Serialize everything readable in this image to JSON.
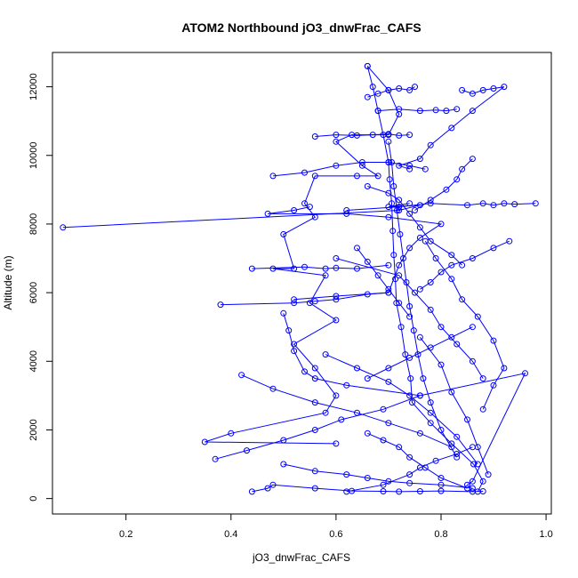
{
  "chart_data": {
    "type": "scatter",
    "title": "ATOM2 Northbound jO3_dnwFrac_CAFS",
    "xlabel": "jO3_dnwFrac_CAFS",
    "ylabel": "Altitude (m)",
    "xlim": [
      0.06,
      1.01
    ],
    "ylim": [
      -450,
      13000
    ],
    "xticks": [
      0.2,
      0.4,
      0.6,
      0.8,
      1.0
    ],
    "xtick_labels": [
      "0.2",
      "0.4",
      "0.6",
      "0.8",
      "1.0"
    ],
    "yticks": [
      0,
      2000,
      4000,
      6000,
      8000,
      10000,
      12000
    ],
    "ytick_labels": [
      "0",
      "2000",
      "4000",
      "6000",
      "8000",
      "10000",
      "12000"
    ],
    "grid": false,
    "marker": "open-circle",
    "connected": true,
    "color": "#0000ff",
    "series": [
      {
        "x": [
          0.87,
          0.88,
          0.862,
          0.82,
          0.78,
          0.745,
          0.742,
          0.732,
          0.724,
          0.715,
          0.713,
          0.71,
          0.708,
          0.706,
          0.702,
          0.7,
          0.69,
          0.68,
          0.67,
          0.66
        ],
        "y": [
          200,
          500,
          1000,
          1600,
          2200,
          2800,
          3500,
          4200,
          5000,
          5700,
          6400,
          7100,
          7800,
          8600,
          9300,
          9800,
          10600,
          11300,
          12000,
          12600
        ]
      },
      {
        "x": [
          0.66,
          0.7,
          0.72,
          0.7,
          0.63,
          0.6,
          0.65,
          0.68,
          0.64,
          0.56,
          0.54,
          0.56,
          0.5,
          0.52,
          0.48,
          0.58,
          0.55,
          0.6,
          0.52,
          0.56,
          0.6,
          0.58,
          0.4,
          0.35,
          0.6
        ],
        "y": [
          12600,
          11900,
          11200,
          10600,
          10600,
          10400,
          9700,
          9400,
          9400,
          9400,
          8600,
          8200,
          7700,
          6700,
          6700,
          6500,
          5700,
          5200,
          4500,
          3800,
          3000,
          2500,
          1900,
          1650,
          1600
        ]
      },
      {
        "x": [
          0.84,
          0.86,
          0.88,
          0.9,
          0.92,
          0.86,
          0.82,
          0.78,
          0.76,
          0.72,
          0.74
        ],
        "y": [
          11900,
          11800,
          11900,
          11950,
          12000,
          11300,
          10800,
          10300,
          9900,
          9700,
          9600
        ]
      },
      {
        "x": [
          0.44,
          0.47,
          0.48,
          0.56,
          0.63,
          0.69,
          0.72,
          0.76,
          0.8,
          0.86,
          0.88
        ],
        "y": [
          200,
          300,
          400,
          300,
          220,
          210,
          200,
          210,
          220,
          200,
          210
        ]
      },
      {
        "x": [
          0.85,
          0.86,
          0.96,
          0.76,
          0.62,
          0.56,
          0.54,
          0.52,
          0.51,
          0.5
        ],
        "y": [
          400,
          500,
          3650,
          3000,
          3300,
          3500,
          3700,
          4300,
          4900,
          5400
        ]
      },
      {
        "x": [
          0.52,
          0.6,
          0.7,
          0.72,
          0.74,
          0.76,
          0.8,
          0.7,
          0.62,
          0.47,
          0.52,
          0.55
        ],
        "y": [
          5800,
          5900,
          6000,
          6800,
          7300,
          7600,
          8000,
          8200,
          8300,
          8300,
          8400,
          8500
        ]
      },
      {
        "x": [
          0.62,
          0.72,
          0.78,
          0.85,
          0.88,
          0.9,
          0.92,
          0.94,
          0.98
        ],
        "y": [
          8400,
          8500,
          8600,
          8550,
          8600,
          8550,
          8600,
          8580,
          8600
        ]
      },
      {
        "x": [
          0.08,
          0.72,
          0.76,
          0.7,
          0.74
        ],
        "y": [
          7900,
          8400,
          8550,
          8500,
          8600
        ]
      },
      {
        "x": [
          0.38,
          0.52,
          0.56,
          0.6,
          0.66,
          0.7
        ],
        "y": [
          5650,
          5700,
          5750,
          5800,
          5950,
          6000
        ]
      },
      {
        "x": [
          0.44,
          0.54,
          0.58,
          0.6,
          0.64,
          0.7
        ],
        "y": [
          6700,
          6750,
          6700,
          6720,
          6700,
          6800
        ]
      },
      {
        "x": [
          0.6,
          0.72,
          0.75,
          0.78,
          0.8,
          0.83,
          0.86,
          0.88
        ],
        "y": [
          7000,
          6500,
          6000,
          5500,
          5000,
          4500,
          4000,
          3500
        ]
      },
      {
        "x": [
          0.37,
          0.43,
          0.5,
          0.56,
          0.61,
          0.69,
          0.76
        ],
        "y": [
          1150,
          1400,
          1700,
          2000,
          2300,
          2600,
          3000
        ]
      },
      {
        "x": [
          0.62,
          0.69,
          0.74,
          0.76,
          0.79,
          0.83,
          0.86
        ],
        "y": [
          200,
          400,
          700,
          900,
          1100,
          1300,
          1500
        ]
      },
      {
        "x": [
          0.88,
          0.9,
          0.92,
          0.9,
          0.87,
          0.84,
          0.82,
          0.79,
          0.77
        ],
        "y": [
          2600,
          3300,
          3800,
          4600,
          5300,
          5800,
          6400,
          7000,
          7500
        ]
      },
      {
        "x": [
          0.93,
          0.9,
          0.86,
          0.82,
          0.8,
          0.78,
          0.76
        ],
        "y": [
          7500,
          7300,
          7000,
          6800,
          6600,
          6300,
          6100
        ]
      },
      {
        "x": [
          0.86,
          0.84,
          0.83,
          0.81,
          0.78,
          0.75
        ],
        "y": [
          9900,
          9600,
          9300,
          9000,
          8700,
          8400
        ]
      },
      {
        "x": [
          0.48,
          0.54,
          0.6,
          0.65,
          0.7,
          0.74,
          0.77
        ],
        "y": [
          9400,
          9500,
          9700,
          9800,
          9800,
          9700,
          9600
        ]
      },
      {
        "x": [
          0.56,
          0.6,
          0.64,
          0.67,
          0.7,
          0.72,
          0.74
        ],
        "y": [
          10550,
          10600,
          10580,
          10600,
          10620,
          10580,
          10600
        ]
      },
      {
        "x": [
          0.68,
          0.72,
          0.76,
          0.79,
          0.81,
          0.83
        ],
        "y": [
          11300,
          11350,
          11300,
          11320,
          11300,
          11350
        ]
      },
      {
        "x": [
          0.66,
          0.68,
          0.7,
          0.72,
          0.74,
          0.75
        ],
        "y": [
          11700,
          11800,
          11900,
          11950,
          11900,
          12000
        ]
      },
      {
        "x": [
          0.5,
          0.56,
          0.62,
          0.66,
          0.7,
          0.74,
          0.8,
          0.86
        ],
        "y": [
          1000,
          800,
          700,
          600,
          500,
          450,
          400,
          300
        ]
      },
      {
        "x": [
          0.42,
          0.48,
          0.56,
          0.64,
          0.7,
          0.76,
          0.82
        ],
        "y": [
          3600,
          3200,
          2800,
          2500,
          2200,
          1900,
          1500
        ]
      },
      {
        "x": [
          0.58,
          0.64,
          0.7,
          0.74,
          0.78,
          0.83,
          0.87
        ],
        "y": [
          4200,
          3800,
          3400,
          3000,
          2500,
          1800,
          1000
        ]
      },
      {
        "x": [
          0.89,
          0.87,
          0.85,
          0.82,
          0.8,
          0.76
        ],
        "y": [
          700,
          1500,
          2300,
          3100,
          3900,
          4700
        ]
      },
      {
        "x": [
          0.66,
          0.7,
          0.72,
          0.74,
          0.76,
          0.78,
          0.82,
          0.84
        ],
        "y": [
          9100,
          8900,
          8700,
          8300,
          7900,
          7500,
          7100,
          6800
        ]
      },
      {
        "x": [
          0.64,
          0.66,
          0.68,
          0.7,
          0.72,
          0.74
        ],
        "y": [
          7300,
          6900,
          6500,
          6100,
          5700,
          5300
        ]
      },
      {
        "x": [
          0.7,
          0.706,
          0.71,
          0.716,
          0.722,
          0.728,
          0.734,
          0.74,
          0.748,
          0.756,
          0.766,
          0.78,
          0.8,
          0.83
        ],
        "y": [
          10400,
          9800,
          9100,
          8400,
          7700,
          7000,
          6300,
          5600,
          4900,
          4200,
          3500,
          2800,
          2000,
          1200
        ]
      },
      {
        "x": [
          0.66,
          0.69,
          0.72,
          0.74,
          0.77,
          0.8,
          0.85
        ],
        "y": [
          1900,
          1700,
          1500,
          1200,
          900,
          600,
          300
        ]
      },
      {
        "x": [
          0.86,
          0.82,
          0.78,
          0.74,
          0.7,
          0.66
        ],
        "y": [
          5000,
          4700,
          4400,
          4100,
          3800,
          3500
        ]
      }
    ]
  }
}
